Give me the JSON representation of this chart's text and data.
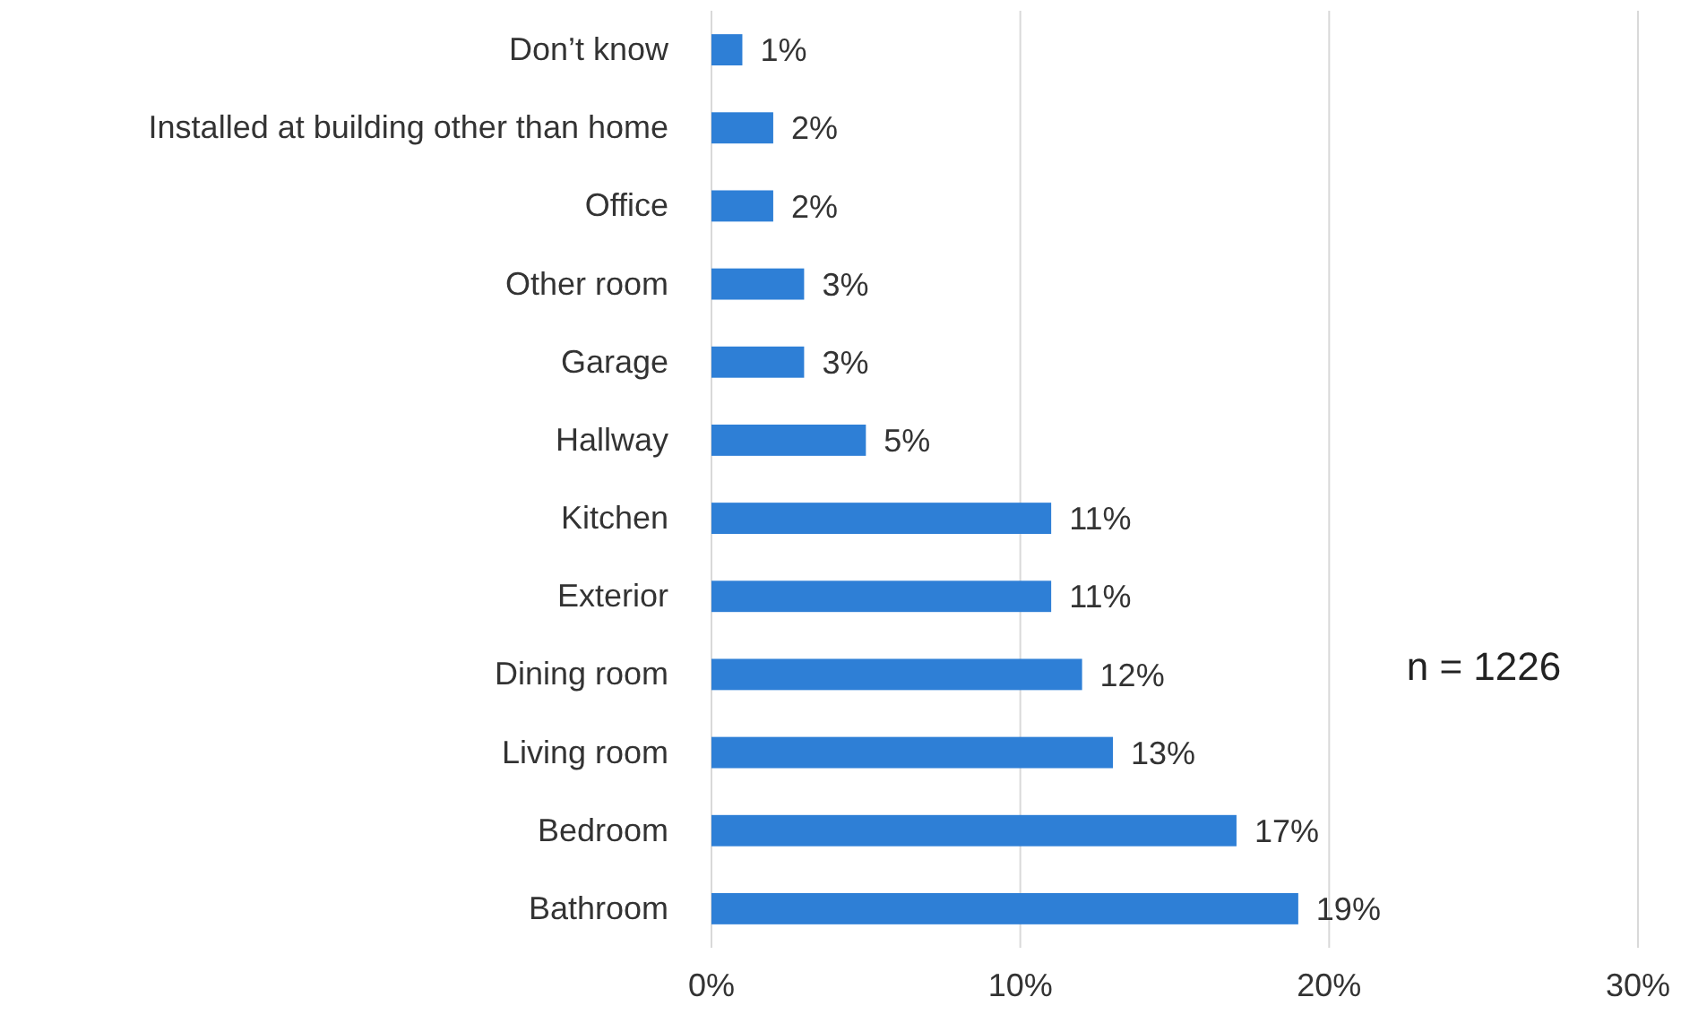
{
  "chart_data": {
    "type": "bar",
    "orientation": "horizontal",
    "categories": [
      "Don’t know",
      "Installed at building other than home",
      "Office",
      "Other room",
      "Garage",
      "Hallway",
      "Kitchen",
      "Exterior",
      "Dining room",
      "Living room",
      "Bedroom",
      "Bathroom"
    ],
    "values": [
      1,
      2,
      2,
      3,
      3,
      5,
      11,
      11,
      12,
      13,
      17,
      19
    ],
    "value_labels": [
      "1%",
      "2%",
      "2%",
      "3%",
      "3%",
      "5%",
      "11%",
      "11%",
      "12%",
      "13%",
      "17%",
      "19%"
    ],
    "color": "#2e7fd6",
    "xlim": [
      0,
      30
    ],
    "xticks": [
      {
        "value": 0,
        "label": "0%"
      },
      {
        "value": 10,
        "label": "10%"
      },
      {
        "value": 20,
        "label": "20%"
      },
      {
        "value": 30,
        "label": "30%"
      }
    ],
    "grid": "x",
    "annotations": [
      "n = 1226"
    ]
  }
}
